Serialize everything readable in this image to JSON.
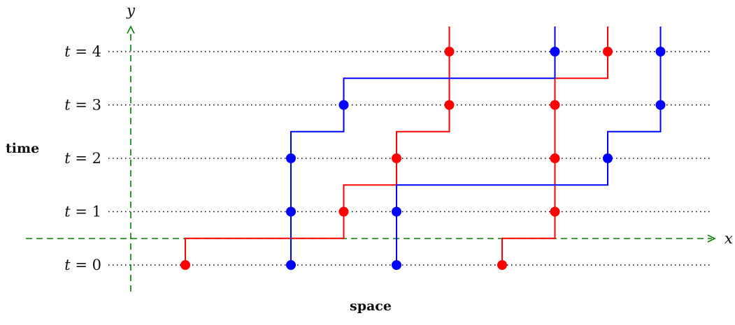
{
  "labels": {
    "y_axis": "y",
    "x_axis": "x",
    "side": "time",
    "bottom": "space",
    "t_prefix": "t = ",
    "t_values": [
      "0",
      "1",
      "2",
      "3",
      "4"
    ]
  },
  "colors": {
    "red": "#ff0000",
    "blue": "#0000ff",
    "axis": "#008000",
    "dotted": "#000000"
  },
  "x_values": [
    1,
    3,
    5,
    7,
    9,
    11
  ],
  "worldlines": [
    {
      "color": "red",
      "path": [
        [
          1,
          0
        ],
        [
          1,
          0.5
        ],
        [
          4,
          0.5
        ],
        [
          4,
          1
        ],
        [
          4,
          1.5
        ],
        [
          5,
          1.5
        ],
        [
          5,
          2
        ],
        [
          5,
          2.5
        ],
        [
          6,
          2.5
        ],
        [
          6,
          3
        ],
        [
          6,
          4
        ],
        [
          6,
          4.5
        ]
      ]
    },
    {
      "color": "red",
      "path": [
        [
          7,
          0
        ],
        [
          7,
          0.5
        ],
        [
          8,
          0.5
        ],
        [
          8,
          1
        ],
        [
          8,
          2
        ],
        [
          8,
          3
        ],
        [
          8,
          3.5
        ],
        [
          9,
          3.5
        ],
        [
          9,
          4
        ],
        [
          9,
          4.5
        ]
      ]
    },
    {
      "color": "blue",
      "path": [
        [
          3,
          0
        ],
        [
          3,
          1
        ],
        [
          3,
          2
        ],
        [
          3,
          2.5
        ],
        [
          4,
          2.5
        ],
        [
          4,
          3
        ],
        [
          4,
          3.5
        ],
        [
          8,
          3.5
        ],
        [
          8,
          4
        ],
        [
          8,
          4.5
        ]
      ]
    },
    {
      "color": "blue",
      "path": [
        [
          5,
          0
        ],
        [
          5,
          1
        ],
        [
          5,
          1.5
        ],
        [
          9,
          1.5
        ],
        [
          9,
          2
        ],
        [
          9,
          2.5
        ],
        [
          10,
          2.5
        ],
        [
          10,
          3
        ],
        [
          10,
          4
        ],
        [
          10,
          4.5
        ]
      ]
    }
  ],
  "events": [
    {
      "x": 1,
      "t": 0,
      "color": "red"
    },
    {
      "x": 3,
      "t": 0,
      "color": "blue"
    },
    {
      "x": 5,
      "t": 0,
      "color": "blue"
    },
    {
      "x": 7,
      "t": 0,
      "color": "red"
    },
    {
      "x": 3,
      "t": 1,
      "color": "blue"
    },
    {
      "x": 4,
      "t": 1,
      "color": "red"
    },
    {
      "x": 5,
      "t": 1,
      "color": "blue"
    },
    {
      "x": 8,
      "t": 1,
      "color": "red"
    },
    {
      "x": 3,
      "t": 2,
      "color": "blue"
    },
    {
      "x": 5,
      "t": 2,
      "color": "red"
    },
    {
      "x": 8,
      "t": 2,
      "color": "red"
    },
    {
      "x": 9,
      "t": 2,
      "color": "blue"
    },
    {
      "x": 4,
      "t": 3,
      "color": "blue"
    },
    {
      "x": 6,
      "t": 3,
      "color": "red"
    },
    {
      "x": 8,
      "t": 3,
      "color": "red"
    },
    {
      "x": 10,
      "t": 3,
      "color": "blue"
    },
    {
      "x": 6,
      "t": 4,
      "color": "red"
    },
    {
      "x": 8,
      "t": 4,
      "color": "blue"
    },
    {
      "x": 9,
      "t": 4,
      "color": "red"
    },
    {
      "x": 10,
      "t": 4,
      "color": "blue"
    }
  ]
}
